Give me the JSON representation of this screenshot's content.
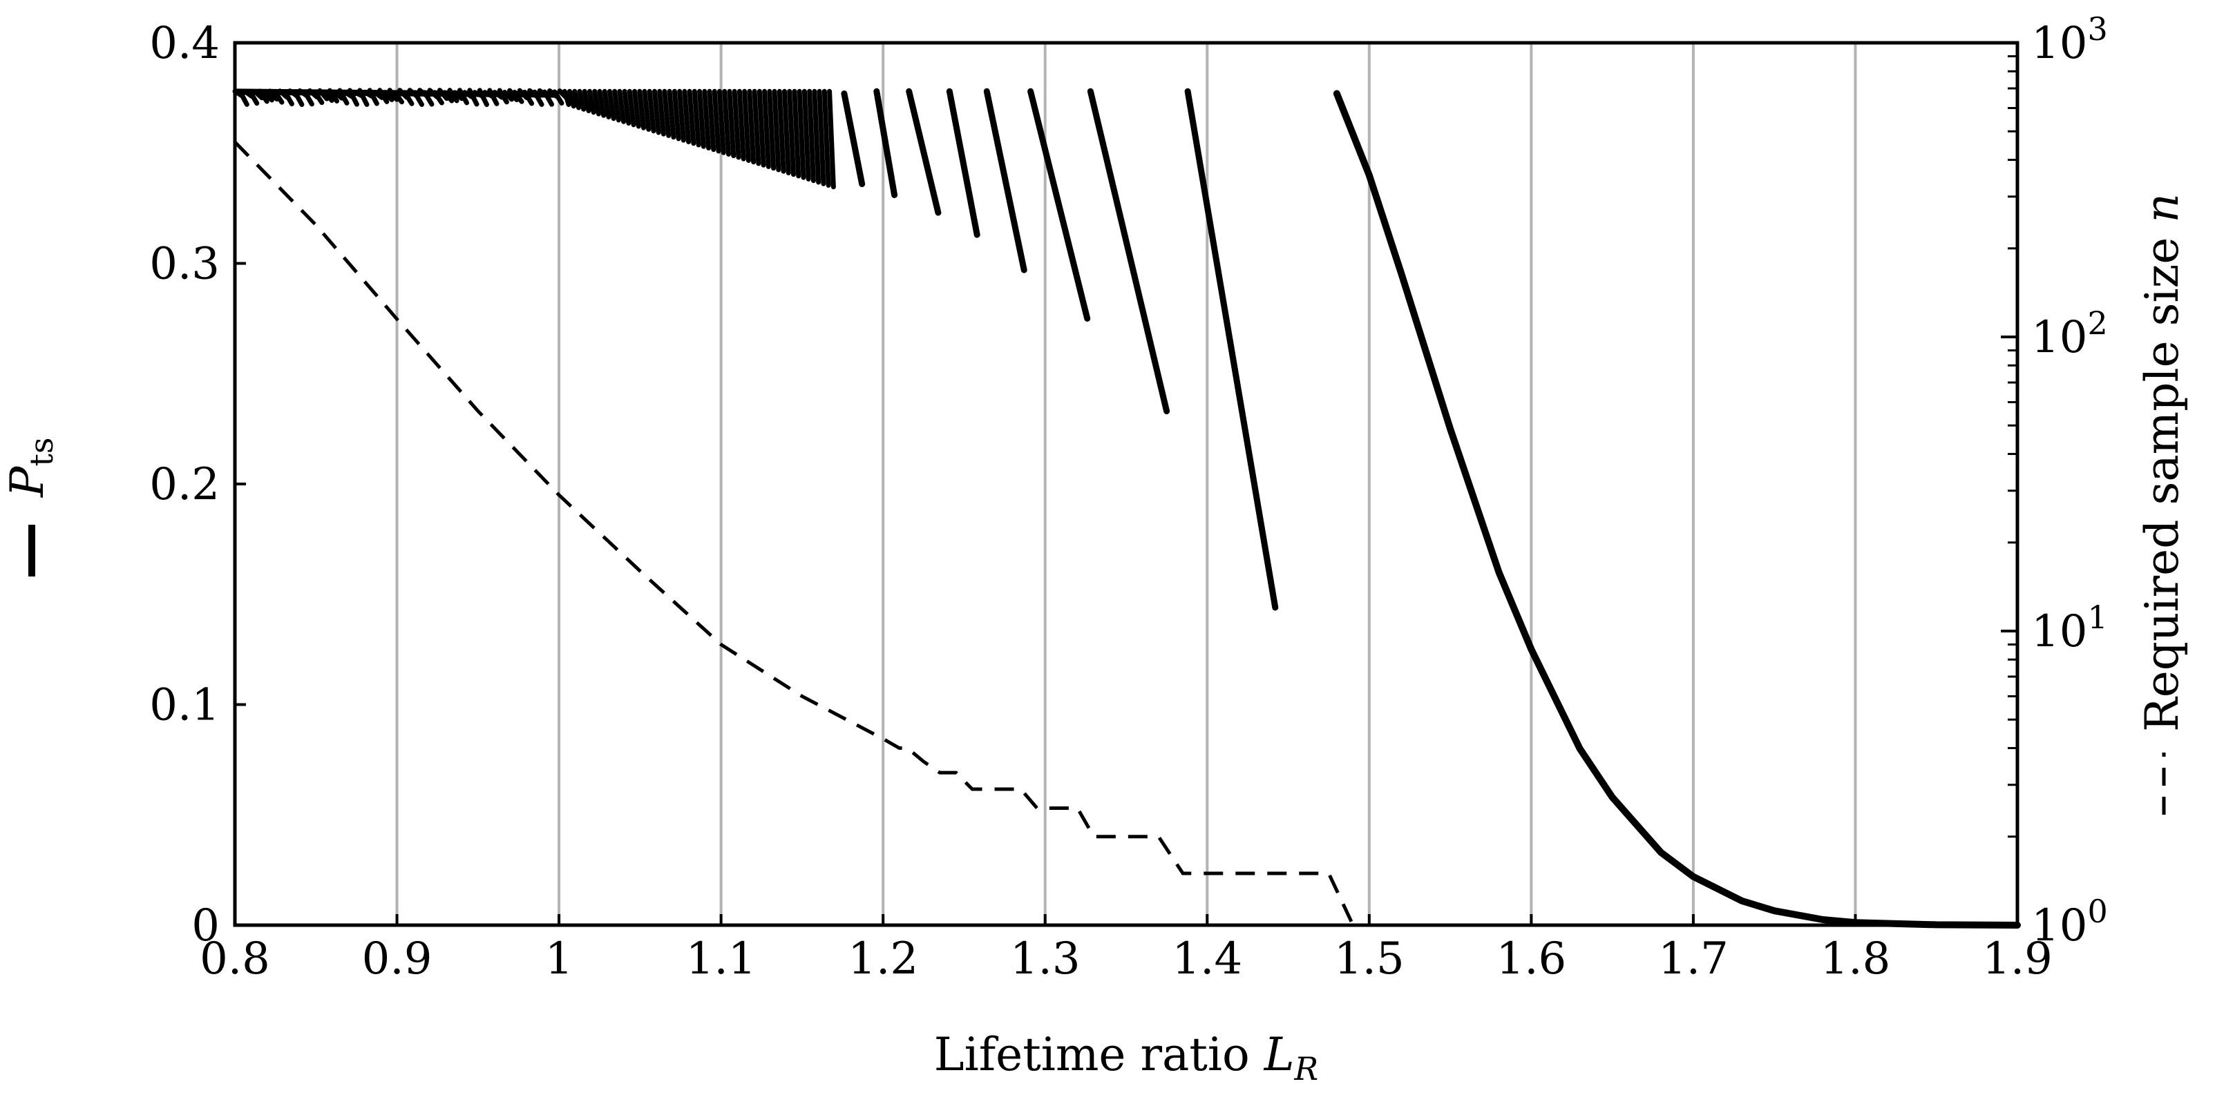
{
  "chart_data": {
    "type": "line",
    "title": "",
    "xlabel": "Lifetime ratio",
    "xlabel_symbol": "L",
    "xlabel_sub": "R",
    "ylabel_left": "P",
    "ylabel_left_sub": "ts",
    "ylabel_right": "Required sample size",
    "ylabel_right_symbol": "n",
    "xlim": [
      0.8,
      1.9
    ],
    "ylim_left": [
      0,
      0.4
    ],
    "ylim_right": [
      1,
      1000
    ],
    "yscale_right": "log",
    "grid": "vertical",
    "x_ticks": [
      {
        "value": 0.8,
        "label": "0.8"
      },
      {
        "value": 0.9,
        "label": "0.9"
      },
      {
        "value": 1.0,
        "label": "1"
      },
      {
        "value": 1.1,
        "label": "1.1"
      },
      {
        "value": 1.2,
        "label": "1.2"
      },
      {
        "value": 1.3,
        "label": "1.3"
      },
      {
        "value": 1.4,
        "label": "1.4"
      },
      {
        "value": 1.5,
        "label": "1.5"
      },
      {
        "value": 1.6,
        "label": "1.6"
      },
      {
        "value": 1.7,
        "label": "1.7"
      },
      {
        "value": 1.8,
        "label": "1.8"
      },
      {
        "value": 1.9,
        "label": "1.9"
      }
    ],
    "y_left_ticks": [
      {
        "value": 0,
        "label": "0"
      },
      {
        "value": 0.1,
        "label": "0.1"
      },
      {
        "value": 0.2,
        "label": "0.2"
      },
      {
        "value": 0.3,
        "label": "0.3"
      },
      {
        "value": 0.4,
        "label": "0.4"
      }
    ],
    "y_right_ticks": [
      {
        "value": 1,
        "base": "10",
        "exp": "0"
      },
      {
        "value": 10,
        "base": "10",
        "exp": "1"
      },
      {
        "value": 100,
        "base": "10",
        "exp": "2"
      },
      {
        "value": 1000,
        "base": "10",
        "exp": "3"
      }
    ],
    "series": [
      {
        "name": "P_ts",
        "axis": "left",
        "style": "solid",
        "segments": [
          {
            "x0": 1.176,
            "x1": 1.187,
            "y0": 0.377,
            "y1": 0.336
          },
          {
            "x0": 1.196,
            "x1": 1.207,
            "y0": 0.378,
            "y1": 0.331
          },
          {
            "x0": 1.216,
            "x1": 1.234,
            "y0": 0.378,
            "y1": 0.323
          },
          {
            "x0": 1.241,
            "x1": 1.258,
            "y0": 0.378,
            "y1": 0.313
          },
          {
            "x0": 1.264,
            "x1": 1.287,
            "y0": 0.378,
            "y1": 0.297
          },
          {
            "x0": 1.291,
            "x1": 1.326,
            "y0": 0.378,
            "y1": 0.275
          },
          {
            "x0": 1.328,
            "x1": 1.375,
            "y0": 0.378,
            "y1": 0.233
          },
          {
            "x0": 1.388,
            "x1": 1.442,
            "y0": 0.378,
            "y1": 0.144
          },
          {
            "x0": 1.48,
            "x1": 1.9,
            "y0": 0.377,
            "y1": 0.0
          }
        ],
        "dense_region": {
          "x_start": 0.8,
          "x_end": 1.17,
          "y_top": 0.378,
          "y_bottom_at_end": 0.34
        },
        "decay_curve": [
          {
            "x": 1.48,
            "y": 0.377
          },
          {
            "x": 1.5,
            "y": 0.34
          },
          {
            "x": 1.52,
            "y": 0.295
          },
          {
            "x": 1.55,
            "y": 0.225
          },
          {
            "x": 1.58,
            "y": 0.16
          },
          {
            "x": 1.6,
            "y": 0.125
          },
          {
            "x": 1.63,
            "y": 0.08
          },
          {
            "x": 1.65,
            "y": 0.058
          },
          {
            "x": 1.68,
            "y": 0.033
          },
          {
            "x": 1.7,
            "y": 0.022
          },
          {
            "x": 1.73,
            "y": 0.011
          },
          {
            "x": 1.75,
            "y": 0.0065
          },
          {
            "x": 1.78,
            "y": 0.0025
          },
          {
            "x": 1.8,
            "y": 0.0012
          },
          {
            "x": 1.85,
            "y": 0.0002
          },
          {
            "x": 1.9,
            "y": 0.0
          }
        ]
      },
      {
        "name": "n",
        "axis": "right",
        "style": "dashed",
        "points": [
          {
            "x": 0.8,
            "y": 460
          },
          {
            "x": 0.85,
            "y": 240
          },
          {
            "x": 0.9,
            "y": 115
          },
          {
            "x": 0.95,
            "y": 56
          },
          {
            "x": 1.0,
            "y": 29
          },
          {
            "x": 1.05,
            "y": 16
          },
          {
            "x": 1.1,
            "y": 9
          },
          {
            "x": 1.15,
            "y": 6
          },
          {
            "x": 1.2,
            "y": 4.3
          },
          {
            "x": 1.21,
            "y": 4
          },
          {
            "x": 1.215,
            "y": 4
          },
          {
            "x": 1.225,
            "y": 3.6
          },
          {
            "x": 1.235,
            "y": 3.3
          },
          {
            "x": 1.245,
            "y": 3.3
          },
          {
            "x": 1.255,
            "y": 2.9
          },
          {
            "x": 1.285,
            "y": 2.9
          },
          {
            "x": 1.295,
            "y": 2.5
          },
          {
            "x": 1.32,
            "y": 2.5
          },
          {
            "x": 1.33,
            "y": 2.0
          },
          {
            "x": 1.37,
            "y": 2.0
          },
          {
            "x": 1.385,
            "y": 1.5
          },
          {
            "x": 1.475,
            "y": 1.5
          },
          {
            "x": 1.49,
            "y": 1.0
          }
        ]
      }
    ]
  }
}
